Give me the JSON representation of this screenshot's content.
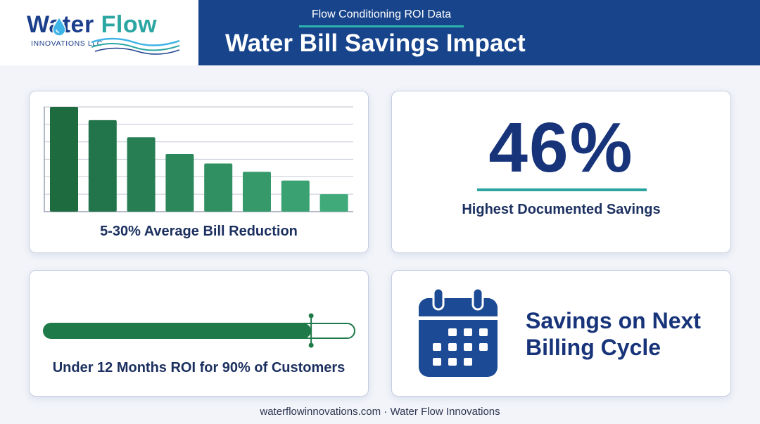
{
  "brand": {
    "name_part1": "Water",
    "name_part2": "Flow",
    "subtitle": "INNOVATIONS LLC",
    "primary_color": "#1c3f8c",
    "accent_color": "#2ba6a2"
  },
  "header": {
    "subtitle": "Flow Conditioning ROI Data",
    "title": "Water Bill Savings Impact",
    "band_color": "#17448b"
  },
  "chart_data": {
    "type": "bar",
    "categories": [
      "",
      "",
      "",
      "",
      "",
      "",
      "",
      ""
    ],
    "values": [
      30,
      26.2,
      21.3,
      16.5,
      13.8,
      11.4,
      8.9,
      5
    ],
    "ylim": [
      0,
      30
    ],
    "grid": true,
    "gridlines": [
      5,
      10,
      15,
      20,
      25,
      30
    ],
    "caption": "5-30% Average Bill Reduction",
    "bar_colors": [
      "#1d6b3f",
      "#22744a",
      "#277e52",
      "#2c875a",
      "#309062",
      "#35996a",
      "#3aa272",
      "#40aa7a"
    ]
  },
  "stat": {
    "value": "46%",
    "caption": "Highest Documented Savings"
  },
  "roi": {
    "progress": 0.86,
    "caption": "Under 12 Months ROI for 90% of Customers",
    "fill_color": "#1f7a49"
  },
  "cycle": {
    "icon": "calendar-icon",
    "text": "Savings on Next Billing Cycle"
  },
  "footer": {
    "text": "waterflowinnovations.com · Water Flow Innovations"
  }
}
